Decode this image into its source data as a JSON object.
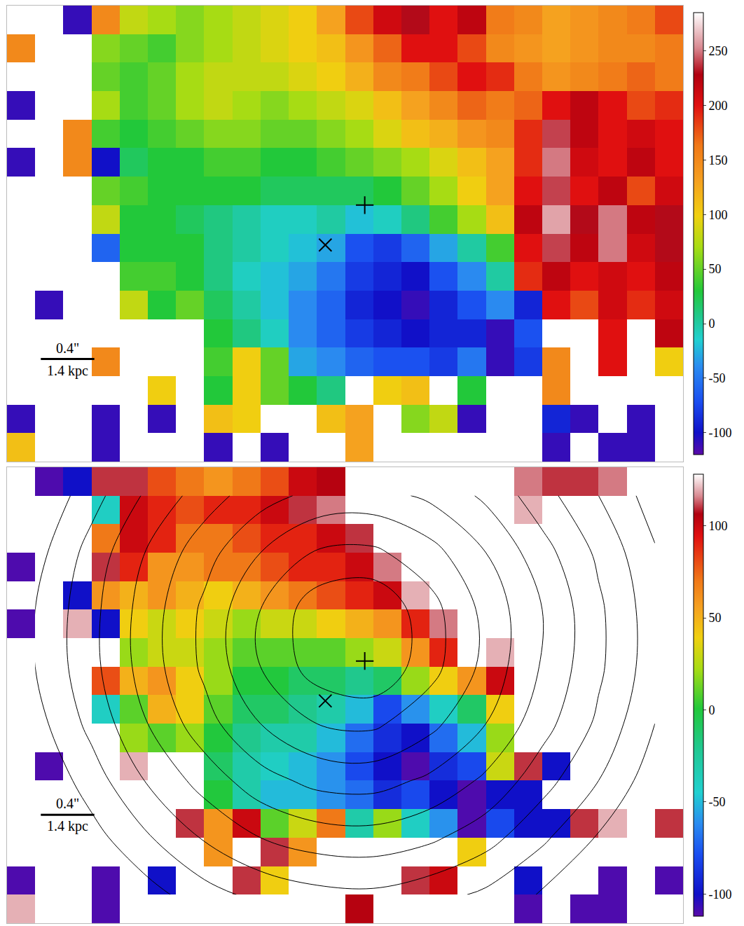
{
  "chart_data": [
    {
      "type": "heatmap",
      "x": [
        0,
        1,
        2,
        3,
        4,
        5,
        6,
        7,
        8,
        9,
        10,
        11,
        12,
        13,
        14,
        15,
        16,
        17,
        18,
        19,
        20,
        21,
        22,
        23
      ],
      "y": [
        0,
        1,
        2,
        3,
        4,
        5,
        6,
        7,
        8,
        9,
        10,
        11,
        12,
        13,
        14,
        15
      ],
      "z": [
        [
          null,
          null,
          -110,
          150,
          80,
          70,
          60,
          70,
          80,
          90,
          100,
          130,
          180,
          210,
          230,
          200,
          220,
          160,
          150,
          130,
          140,
          150,
          160,
          180
        ],
        [
          150,
          null,
          null,
          60,
          50,
          40,
          60,
          70,
          80,
          90,
          100,
          110,
          140,
          170,
          200,
          200,
          180,
          150,
          140,
          130,
          140,
          150,
          150,
          160
        ],
        [
          null,
          null,
          null,
          50,
          40,
          50,
          70,
          80,
          80,
          80,
          90,
          100,
          120,
          150,
          160,
          180,
          200,
          190,
          160,
          140,
          150,
          160,
          170,
          160
        ],
        [
          -110,
          null,
          null,
          70,
          40,
          50,
          70,
          80,
          70,
          60,
          70,
          80,
          90,
          110,
          130,
          150,
          170,
          160,
          170,
          200,
          220,
          200,
          180,
          190
        ],
        [
          null,
          null,
          150,
          40,
          30,
          40,
          50,
          60,
          60,
          50,
          50,
          60,
          70,
          90,
          110,
          120,
          140,
          150,
          190,
          240,
          220,
          200,
          210,
          200
        ],
        [
          -110,
          null,
          150,
          -100,
          20,
          30,
          30,
          40,
          40,
          30,
          30,
          40,
          50,
          60,
          70,
          90,
          110,
          130,
          190,
          250,
          210,
          200,
          220,
          200
        ],
        [
          null,
          null,
          null,
          50,
          40,
          30,
          30,
          30,
          30,
          20,
          20,
          20,
          20,
          30,
          50,
          70,
          100,
          130,
          200,
          240,
          200,
          220,
          180,
          210
        ],
        [
          null,
          null,
          null,
          80,
          30,
          30,
          20,
          10,
          0,
          -10,
          -10,
          0,
          -20,
          -10,
          10,
          40,
          70,
          110,
          220,
          260,
          230,
          250,
          220,
          230
        ],
        [
          null,
          null,
          null,
          -60,
          30,
          30,
          30,
          10,
          0,
          -10,
          -20,
          -30,
          -70,
          -80,
          -60,
          -30,
          0,
          40,
          200,
          240,
          220,
          250,
          210,
          230
        ],
        [
          null,
          null,
          null,
          null,
          40,
          40,
          30,
          10,
          -10,
          -20,
          -30,
          -50,
          -80,
          -90,
          -100,
          -70,
          -40,
          0,
          190,
          220,
          200,
          210,
          200,
          220
        ],
        [
          null,
          -110,
          null,
          null,
          80,
          30,
          50,
          20,
          0,
          -20,
          -40,
          -60,
          -90,
          -100,
          -110,
          -90,
          -70,
          -40,
          -90,
          200,
          180,
          210,
          190,
          210
        ],
        [
          null,
          null,
          null,
          null,
          null,
          null,
          null,
          30,
          10,
          -10,
          -40,
          -60,
          -80,
          -90,
          -100,
          -90,
          -90,
          -110,
          -70,
          null,
          null,
          200,
          null,
          220
        ],
        [
          null,
          null,
          null,
          150,
          null,
          null,
          null,
          40,
          100,
          50,
          -30,
          -40,
          -60,
          -70,
          -70,
          -80,
          -50,
          -110,
          -80,
          150,
          null,
          200,
          null,
          100
        ],
        [
          null,
          null,
          null,
          null,
          null,
          100,
          null,
          30,
          100,
          50,
          30,
          10,
          null,
          100,
          110,
          null,
          30,
          null,
          null,
          150,
          null,
          null,
          null,
          null
        ],
        [
          -110,
          null,
          null,
          -110,
          null,
          -110,
          null,
          110,
          100,
          null,
          null,
          110,
          130,
          null,
          60,
          80,
          -110,
          null,
          null,
          -90,
          -110,
          null,
          -110,
          null
        ],
        [
          110,
          null,
          null,
          -110,
          null,
          null,
          null,
          -110,
          null,
          -110,
          null,
          null,
          130,
          null,
          null,
          null,
          null,
          null,
          null,
          -110,
          null,
          -110,
          -110,
          null
        ]
      ],
      "zlim": [
        -120,
        285
      ],
      "zticks": [
        -100,
        -50,
        0,
        50,
        100,
        150,
        200,
        250
      ],
      "xlim": [
        -0.5,
        23.5
      ],
      "ylim": [
        15.5,
        -0.5
      ],
      "tick_labels": false,
      "markers": [
        {
          "x": 12.2,
          "y": 6.5,
          "marker": "cross"
        },
        {
          "x": 10.8,
          "y": 7.9,
          "marker": "x"
        }
      ],
      "scale_bar": {
        "x0": 0.7,
        "x1": 2.6,
        "y": 11.9,
        "label_top": "0.4\"",
        "label_bottom": "1.4 kpc"
      }
    },
    {
      "type": "heatmap",
      "x": [
        0,
        1,
        2,
        3,
        4,
        5,
        6,
        7,
        8,
        9,
        10,
        11,
        12,
        13,
        14,
        15,
        16,
        17,
        18,
        19,
        20,
        21,
        22,
        23
      ],
      "y": [
        0,
        1,
        2,
        3,
        4,
        5,
        6,
        7,
        8,
        9,
        10,
        11,
        12,
        13,
        14,
        15
      ],
      "z": [
        [
          null,
          -110,
          -100,
          110,
          110,
          80,
          70,
          60,
          70,
          80,
          100,
          105,
          null,
          null,
          null,
          null,
          null,
          null,
          115,
          110,
          110,
          115,
          null,
          null
        ],
        [
          null,
          null,
          null,
          -40,
          100,
          90,
          80,
          90,
          90,
          100,
          110,
          115,
          null,
          null,
          null,
          null,
          null,
          null,
          120,
          null,
          null,
          null,
          null,
          null
        ],
        [
          null,
          null,
          null,
          70,
          100,
          90,
          70,
          70,
          80,
          90,
          90,
          100,
          110,
          null,
          null,
          null,
          null,
          null,
          null,
          null,
          null,
          null,
          null,
          null
        ],
        [
          -110,
          null,
          null,
          110,
          90,
          60,
          60,
          70,
          70,
          80,
          90,
          90,
          100,
          115,
          null,
          null,
          null,
          null,
          null,
          null,
          null,
          null,
          null,
          null
        ],
        [
          null,
          null,
          -100,
          60,
          50,
          60,
          50,
          40,
          50,
          60,
          70,
          80,
          90,
          100,
          120,
          null,
          null,
          null,
          null,
          null,
          null,
          null,
          null,
          null
        ],
        [
          -110,
          null,
          120,
          -100,
          40,
          30,
          40,
          30,
          20,
          30,
          30,
          40,
          50,
          60,
          90,
          115,
          null,
          null,
          null,
          null,
          null,
          null,
          null,
          null
        ],
        [
          null,
          null,
          null,
          null,
          20,
          30,
          30,
          20,
          10,
          10,
          10,
          10,
          20,
          30,
          60,
          90,
          null,
          120,
          null,
          null,
          null,
          null,
          null,
          null
        ],
        [
          null,
          null,
          null,
          80,
          50,
          60,
          40,
          20,
          0,
          0,
          -10,
          -10,
          -20,
          -10,
          20,
          40,
          60,
          100,
          null,
          null,
          null,
          null,
          null,
          null
        ],
        [
          null,
          null,
          null,
          -40,
          10,
          50,
          40,
          10,
          -10,
          -10,
          -20,
          -30,
          -50,
          -80,
          -60,
          -40,
          -10,
          40,
          null,
          null,
          null,
          null,
          null,
          null
        ],
        [
          null,
          null,
          null,
          null,
          20,
          10,
          20,
          0,
          -20,
          -30,
          -30,
          -50,
          -70,
          -90,
          -100,
          -70,
          -50,
          20,
          null,
          null,
          null,
          null,
          null,
          null
        ],
        [
          null,
          -110,
          null,
          null,
          120,
          null,
          null,
          -10,
          -30,
          -40,
          -50,
          -60,
          -80,
          -100,
          -110,
          -90,
          -80,
          30,
          110,
          -100,
          null,
          null,
          null,
          null
        ],
        [
          null,
          null,
          null,
          null,
          null,
          null,
          null,
          0,
          -30,
          -50,
          -50,
          -60,
          -70,
          -90,
          -80,
          -100,
          -110,
          -100,
          -100,
          null,
          null,
          null,
          null,
          null
        ],
        [
          null,
          null,
          null,
          null,
          null,
          null,
          110,
          60,
          100,
          10,
          30,
          70,
          -30,
          20,
          -40,
          -60,
          -110,
          -80,
          -100,
          -100,
          110,
          120,
          null,
          110
        ],
        [
          null,
          null,
          null,
          null,
          null,
          null,
          null,
          60,
          null,
          110,
          60,
          null,
          null,
          null,
          null,
          null,
          40,
          null,
          null,
          null,
          null,
          null,
          null,
          null
        ],
        [
          -110,
          null,
          null,
          -110,
          null,
          -100,
          null,
          null,
          110,
          40,
          null,
          null,
          null,
          null,
          110,
          100,
          null,
          null,
          -100,
          null,
          null,
          -110,
          null,
          -110
        ],
        [
          120,
          null,
          null,
          -110,
          null,
          null,
          null,
          null,
          null,
          null,
          null,
          null,
          105,
          null,
          null,
          null,
          null,
          null,
          -110,
          null,
          -110,
          -110,
          null,
          null
        ]
      ],
      "zlim": [
        -112,
        128
      ],
      "zticks": [
        -100,
        -50,
        0,
        50,
        100
      ],
      "xlim": [
        -0.5,
        23.5
      ],
      "ylim": [
        15.5,
        -0.5
      ],
      "tick_labels": false,
      "markers": [
        {
          "x": 12.2,
          "y": 6.3,
          "marker": "cross"
        },
        {
          "x": 10.8,
          "y": 7.7,
          "marker": "x"
        }
      ],
      "scale_bar": {
        "x0": 0.7,
        "x1": 2.6,
        "y": 11.7,
        "label_top": "0.4\"",
        "label_bottom": "1.4 kpc"
      },
      "contours": {
        "x": [
          0.5,
          2.5,
          4.5,
          6.5,
          8.5,
          10.5,
          12.5,
          14.5,
          16.5,
          18.5,
          20.5,
          22.5
        ],
        "y": [
          0.5,
          2.5,
          4.5,
          6.5,
          8.5,
          10.5,
          12.5,
          14.5
        ],
        "z": [
          [
            0,
            1.6,
            3.2,
            4.5,
            5.6,
            6.3,
            6.4,
            5.8,
            4.8,
            3.4,
            2,
            0.5
          ],
          [
            0.6,
            2.4,
            4.1,
            5.6,
            7,
            8.1,
            8.2,
            7.4,
            6,
            4.4,
            2.8,
            1.1
          ],
          [
            1,
            2.7,
            4.5,
            6.2,
            8,
            9.6,
            9.9,
            8.4,
            6.7,
            5,
            3.2,
            1.4
          ],
          [
            1,
            2.7,
            4.5,
            6.2,
            8,
            9.5,
            9.9,
            8.4,
            6.7,
            4.9,
            3.2,
            1.4
          ],
          [
            0.6,
            2.3,
            4,
            5.6,
            7,
            8,
            8.2,
            7.3,
            6,
            4.4,
            2.8,
            1
          ],
          [
            0,
            1.5,
            3.1,
            4.4,
            5.6,
            6.3,
            6.4,
            5.8,
            4.8,
            3.4,
            2,
            0.4
          ],
          [
            0,
            0.6,
            1.9,
            3.1,
            4,
            4.5,
            4.6,
            4.2,
            3.4,
            2.2,
            0.9,
            0
          ],
          [
            0,
            0,
            0.6,
            1.6,
            2.3,
            2.7,
            2.8,
            2.4,
            1.8,
            0.9,
            0,
            0
          ]
        ],
        "start": 1,
        "end": 10,
        "size": 1
      }
    }
  ]
}
